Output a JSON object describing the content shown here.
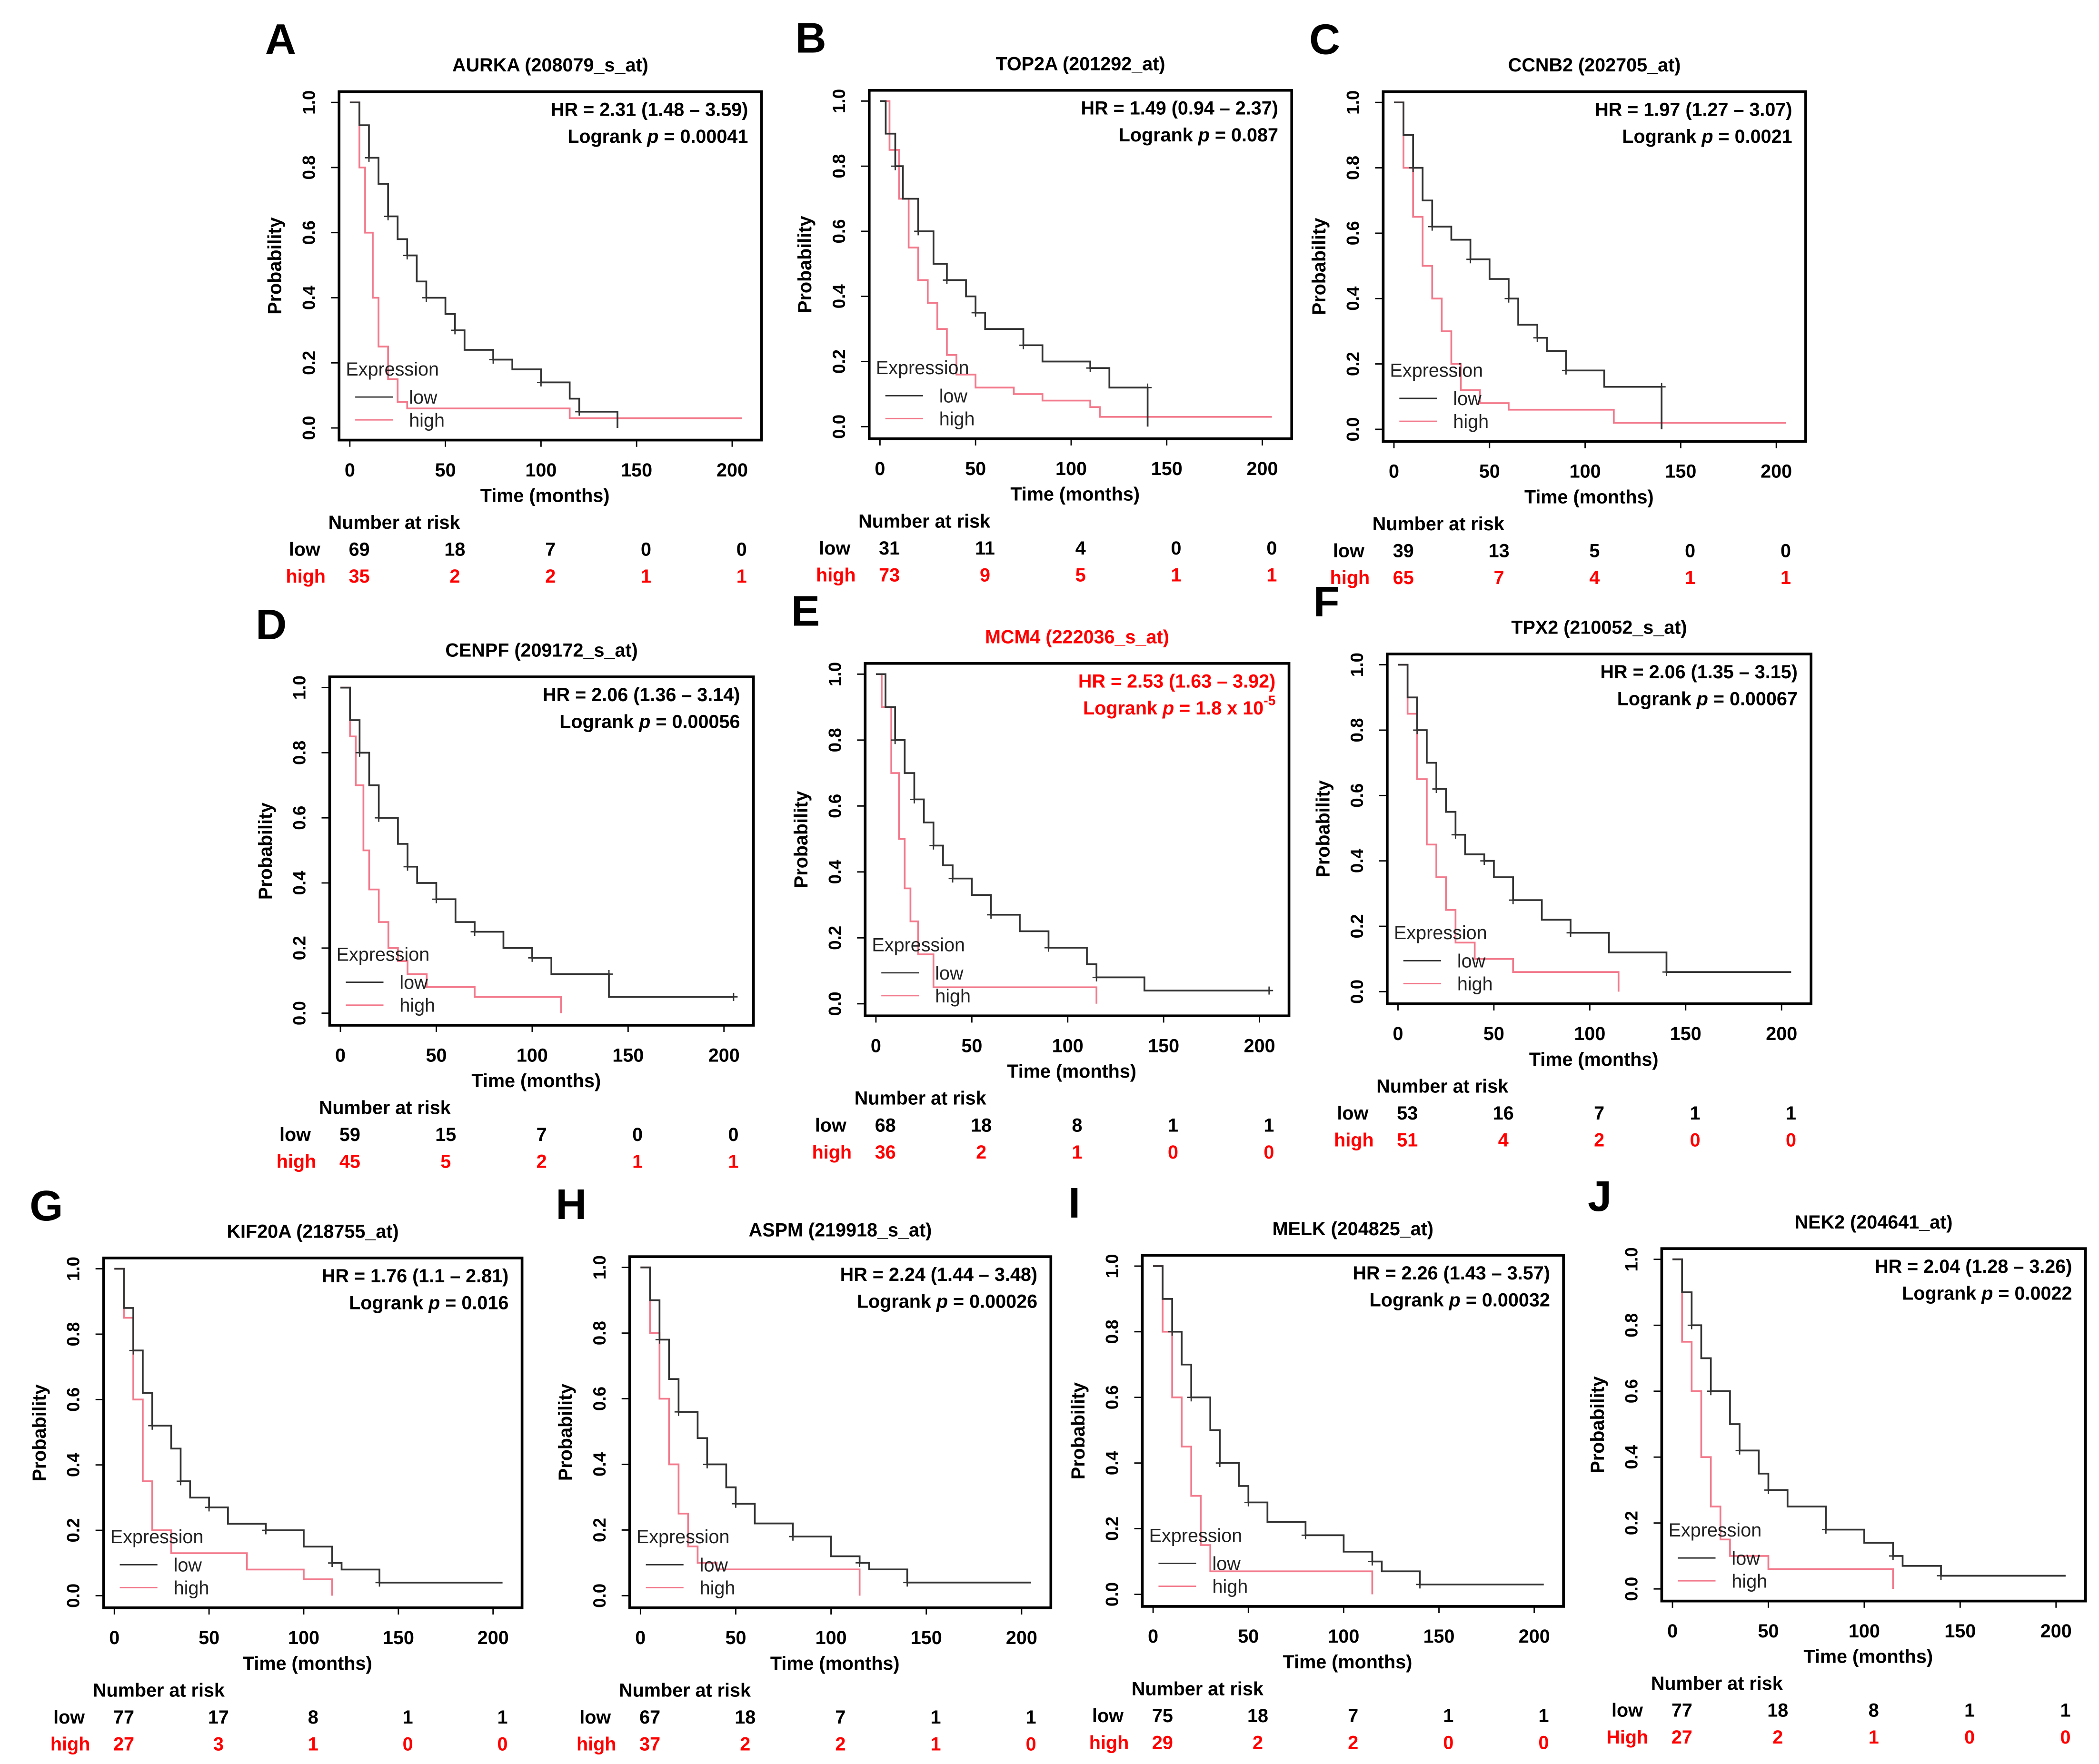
{
  "chart_data": [
    {
      "type": "line",
      "panel": "A",
      "title": "AURKA (208079_s_at)",
      "hr": "HR = 2.31 (1.48 – 3.59)",
      "p_value": "0.00041",
      "p_exp": null,
      "highlight": false,
      "low": [
        [
          0,
          1
        ],
        [
          5,
          0.93
        ],
        [
          10,
          0.83
        ],
        [
          15,
          0.75
        ],
        [
          20,
          0.65
        ],
        [
          25,
          0.58
        ],
        [
          30,
          0.53
        ],
        [
          35,
          0.45
        ],
        [
          40,
          0.4
        ],
        [
          50,
          0.35
        ],
        [
          55,
          0.3
        ],
        [
          60,
          0.24
        ],
        [
          75,
          0.21
        ],
        [
          85,
          0.18
        ],
        [
          100,
          0.14
        ],
        [
          115,
          0.09
        ],
        [
          120,
          0.05
        ],
        [
          140,
          0.05
        ],
        [
          140,
          0
        ]
      ],
      "high": [
        [
          0,
          1
        ],
        [
          5,
          0.8
        ],
        [
          8,
          0.6
        ],
        [
          12,
          0.4
        ],
        [
          15,
          0.25
        ],
        [
          20,
          0.15
        ],
        [
          25,
          0.08
        ],
        [
          30,
          0.06
        ],
        [
          115,
          0.03
        ],
        [
          205,
          0.03
        ]
      ],
      "risk": {
        "low": [
          "69",
          "18",
          "7",
          "0",
          "0"
        ],
        "high": [
          "35",
          "2",
          "2",
          "1",
          "1"
        ]
      },
      "high_label": "high"
    },
    {
      "type": "line",
      "panel": "B",
      "title": "TOP2A (201292_at)",
      "hr": "HR = 1.49 (0.94 – 2.37)",
      "p_value": "0.087",
      "p_exp": null,
      "highlight": false,
      "low": [
        [
          0,
          1
        ],
        [
          3,
          0.9
        ],
        [
          8,
          0.8
        ],
        [
          12,
          0.7
        ],
        [
          20,
          0.6
        ],
        [
          28,
          0.5
        ],
        [
          35,
          0.45
        ],
        [
          45,
          0.4
        ],
        [
          50,
          0.35
        ],
        [
          55,
          0.3
        ],
        [
          75,
          0.25
        ],
        [
          85,
          0.2
        ],
        [
          110,
          0.18
        ],
        [
          120,
          0.12
        ],
        [
          140,
          0.12
        ],
        [
          140,
          0
        ]
      ],
      "high": [
        [
          0,
          1
        ],
        [
          5,
          0.85
        ],
        [
          10,
          0.7
        ],
        [
          15,
          0.55
        ],
        [
          20,
          0.45
        ],
        [
          25,
          0.38
        ],
        [
          30,
          0.3
        ],
        [
          35,
          0.22
        ],
        [
          40,
          0.16
        ],
        [
          50,
          0.12
        ],
        [
          70,
          0.1
        ],
        [
          85,
          0.08
        ],
        [
          110,
          0.06
        ],
        [
          115,
          0.03
        ],
        [
          205,
          0.03
        ]
      ],
      "risk": {
        "low": [
          "31",
          "11",
          "4",
          "0",
          "0"
        ],
        "high": [
          "73",
          "9",
          "5",
          "1",
          "1"
        ]
      },
      "high_label": "high"
    },
    {
      "type": "line",
      "panel": "C",
      "title": "CCNB2 (202705_at)",
      "hr": "HR = 1.97 (1.27 – 3.07)",
      "p_value": "0.0021",
      "p_exp": null,
      "highlight": false,
      "low": [
        [
          0,
          1
        ],
        [
          5,
          0.9
        ],
        [
          10,
          0.8
        ],
        [
          15,
          0.7
        ],
        [
          20,
          0.62
        ],
        [
          30,
          0.58
        ],
        [
          40,
          0.52
        ],
        [
          50,
          0.46
        ],
        [
          60,
          0.4
        ],
        [
          65,
          0.32
        ],
        [
          75,
          0.28
        ],
        [
          80,
          0.24
        ],
        [
          90,
          0.18
        ],
        [
          110,
          0.13
        ],
        [
          140,
          0.13
        ],
        [
          140,
          0
        ]
      ],
      "high": [
        [
          0,
          1
        ],
        [
          5,
          0.8
        ],
        [
          10,
          0.65
        ],
        [
          15,
          0.5
        ],
        [
          20,
          0.4
        ],
        [
          25,
          0.3
        ],
        [
          30,
          0.2
        ],
        [
          35,
          0.12
        ],
        [
          45,
          0.08
        ],
        [
          60,
          0.06
        ],
        [
          100,
          0.06
        ],
        [
          115,
          0.02
        ],
        [
          205,
          0.02
        ]
      ],
      "risk": {
        "low": [
          "39",
          "13",
          "5",
          "0",
          "0"
        ],
        "high": [
          "65",
          "7",
          "4",
          "1",
          "1"
        ]
      },
      "high_label": "high"
    },
    {
      "type": "line",
      "panel": "D",
      "title": "CENPF (209172_s_at)",
      "hr": "HR = 2.06 (1.36 – 3.14)",
      "p_value": "0.00056",
      "p_exp": null,
      "highlight": false,
      "low": [
        [
          0,
          1
        ],
        [
          5,
          0.9
        ],
        [
          10,
          0.8
        ],
        [
          15,
          0.7
        ],
        [
          20,
          0.6
        ],
        [
          30,
          0.52
        ],
        [
          35,
          0.45
        ],
        [
          40,
          0.4
        ],
        [
          50,
          0.35
        ],
        [
          60,
          0.28
        ],
        [
          70,
          0.25
        ],
        [
          85,
          0.2
        ],
        [
          100,
          0.17
        ],
        [
          110,
          0.12
        ],
        [
          140,
          0.12
        ],
        [
          140,
          0.05
        ],
        [
          205,
          0.05
        ]
      ],
      "high": [
        [
          0,
          1
        ],
        [
          5,
          0.85
        ],
        [
          8,
          0.7
        ],
        [
          12,
          0.5
        ],
        [
          15,
          0.38
        ],
        [
          20,
          0.28
        ],
        [
          25,
          0.2
        ],
        [
          30,
          0.16
        ],
        [
          35,
          0.12
        ],
        [
          45,
          0.08
        ],
        [
          70,
          0.05
        ],
        [
          115,
          0.05
        ],
        [
          115,
          0
        ]
      ],
      "risk": {
        "low": [
          "59",
          "15",
          "7",
          "0",
          "0"
        ],
        "high": [
          "45",
          "5",
          "2",
          "1",
          "1"
        ]
      },
      "high_label": "high"
    },
    {
      "type": "line",
      "panel": "E",
      "title": "MCM4 (222036_s_at)",
      "hr": "HR = 2.53 (1.63 – 3.92)",
      "p_value": "1.8 x 10",
      "p_exp": "-5",
      "highlight": true,
      "low": [
        [
          0,
          1
        ],
        [
          5,
          0.9
        ],
        [
          10,
          0.8
        ],
        [
          15,
          0.7
        ],
        [
          20,
          0.62
        ],
        [
          25,
          0.55
        ],
        [
          30,
          0.48
        ],
        [
          35,
          0.42
        ],
        [
          40,
          0.38
        ],
        [
          50,
          0.33
        ],
        [
          60,
          0.27
        ],
        [
          75,
          0.22
        ],
        [
          90,
          0.17
        ],
        [
          110,
          0.12
        ],
        [
          115,
          0.08
        ],
        [
          140,
          0.04
        ],
        [
          205,
          0.04
        ]
      ],
      "high": [
        [
          0,
          1
        ],
        [
          3,
          0.9
        ],
        [
          8,
          0.7
        ],
        [
          12,
          0.5
        ],
        [
          15,
          0.35
        ],
        [
          18,
          0.25
        ],
        [
          22,
          0.15
        ],
        [
          30,
          0.05
        ],
        [
          115,
          0.03
        ],
        [
          115,
          0
        ]
      ],
      "risk": {
        "low": [
          "68",
          "18",
          "8",
          "1",
          "1"
        ],
        "high": [
          "36",
          "2",
          "1",
          "0",
          "0"
        ]
      },
      "high_label": "high"
    },
    {
      "type": "line",
      "panel": "F",
      "title": "TPX2 (210052_s_at)",
      "hr": "HR = 2.06 (1.35 – 3.15)",
      "p_value": "0.00067",
      "p_exp": null,
      "highlight": false,
      "low": [
        [
          0,
          1
        ],
        [
          5,
          0.9
        ],
        [
          10,
          0.8
        ],
        [
          15,
          0.7
        ],
        [
          20,
          0.62
        ],
        [
          25,
          0.55
        ],
        [
          30,
          0.48
        ],
        [
          35,
          0.42
        ],
        [
          45,
          0.4
        ],
        [
          50,
          0.35
        ],
        [
          60,
          0.28
        ],
        [
          75,
          0.22
        ],
        [
          90,
          0.18
        ],
        [
          110,
          0.12
        ],
        [
          140,
          0.06
        ],
        [
          205,
          0.06
        ]
      ],
      "high": [
        [
          0,
          1
        ],
        [
          5,
          0.85
        ],
        [
          10,
          0.65
        ],
        [
          15,
          0.45
        ],
        [
          20,
          0.35
        ],
        [
          25,
          0.25
        ],
        [
          30,
          0.15
        ],
        [
          40,
          0.1
        ],
        [
          60,
          0.06
        ],
        [
          115,
          0.06
        ],
        [
          115,
          0
        ]
      ],
      "risk": {
        "low": [
          "53",
          "16",
          "7",
          "1",
          "1"
        ],
        "high": [
          "51",
          "4",
          "2",
          "0",
          "0"
        ]
      },
      "high_label": "high"
    },
    {
      "type": "line",
      "panel": "G",
      "title": "KIF20A (218755_at)",
      "hr": "HR = 1.76 (1.1 – 2.81)",
      "p_value": "0.016",
      "p_exp": null,
      "highlight": false,
      "low": [
        [
          0,
          1
        ],
        [
          5,
          0.88
        ],
        [
          10,
          0.75
        ],
        [
          15,
          0.62
        ],
        [
          20,
          0.52
        ],
        [
          30,
          0.45
        ],
        [
          35,
          0.35
        ],
        [
          40,
          0.3
        ],
        [
          50,
          0.27
        ],
        [
          60,
          0.22
        ],
        [
          80,
          0.2
        ],
        [
          100,
          0.15
        ],
        [
          115,
          0.1
        ],
        [
          120,
          0.08
        ],
        [
          140,
          0.04
        ],
        [
          205,
          0.04
        ]
      ],
      "high": [
        [
          0,
          1
        ],
        [
          5,
          0.85
        ],
        [
          10,
          0.6
        ],
        [
          15,
          0.35
        ],
        [
          20,
          0.2
        ],
        [
          30,
          0.13
        ],
        [
          70,
          0.08
        ],
        [
          100,
          0.05
        ],
        [
          115,
          0.05
        ],
        [
          115,
          0
        ]
      ],
      "risk": {
        "low": [
          "77",
          "17",
          "8",
          "1",
          "1"
        ],
        "high": [
          "27",
          "3",
          "1",
          "0",
          "0"
        ]
      },
      "high_label": "high"
    },
    {
      "type": "line",
      "panel": "H",
      "title": "ASPM (219918_s_at)",
      "hr": "HR = 2.24 (1.44 – 3.48)",
      "p_value": "0.00026",
      "p_exp": null,
      "highlight": false,
      "low": [
        [
          0,
          1
        ],
        [
          5,
          0.9
        ],
        [
          10,
          0.78
        ],
        [
          15,
          0.66
        ],
        [
          20,
          0.56
        ],
        [
          30,
          0.48
        ],
        [
          35,
          0.4
        ],
        [
          45,
          0.33
        ],
        [
          50,
          0.28
        ],
        [
          60,
          0.22
        ],
        [
          80,
          0.18
        ],
        [
          100,
          0.12
        ],
        [
          115,
          0.1
        ],
        [
          120,
          0.08
        ],
        [
          140,
          0.04
        ],
        [
          205,
          0.04
        ]
      ],
      "high": [
        [
          0,
          1
        ],
        [
          5,
          0.8
        ],
        [
          10,
          0.6
        ],
        [
          15,
          0.4
        ],
        [
          20,
          0.25
        ],
        [
          25,
          0.15
        ],
        [
          30,
          0.1
        ],
        [
          40,
          0.08
        ],
        [
          115,
          0.08
        ],
        [
          115,
          0
        ]
      ],
      "risk": {
        "low": [
          "67",
          "18",
          "7",
          "1",
          "1"
        ],
        "high": [
          "37",
          "2",
          "2",
          "1",
          "0"
        ]
      },
      "high_label": "high"
    },
    {
      "type": "line",
      "panel": "I",
      "title": "MELK (204825_at)",
      "hr": "HR = 2.26 (1.43 – 3.57)",
      "p_value": "0.00032",
      "p_exp": null,
      "highlight": false,
      "low": [
        [
          0,
          1
        ],
        [
          5,
          0.9
        ],
        [
          10,
          0.8
        ],
        [
          15,
          0.7
        ],
        [
          20,
          0.6
        ],
        [
          30,
          0.5
        ],
        [
          35,
          0.4
        ],
        [
          45,
          0.33
        ],
        [
          50,
          0.28
        ],
        [
          60,
          0.22
        ],
        [
          80,
          0.18
        ],
        [
          100,
          0.13
        ],
        [
          115,
          0.1
        ],
        [
          120,
          0.07
        ],
        [
          140,
          0.03
        ],
        [
          205,
          0.03
        ]
      ],
      "high": [
        [
          0,
          1
        ],
        [
          5,
          0.8
        ],
        [
          10,
          0.6
        ],
        [
          15,
          0.45
        ],
        [
          20,
          0.3
        ],
        [
          25,
          0.15
        ],
        [
          30,
          0.07
        ],
        [
          110,
          0.07
        ],
        [
          115,
          0
        ]
      ],
      "risk": {
        "low": [
          "75",
          "18",
          "7",
          "1",
          "1"
        ],
        "high": [
          "29",
          "2",
          "2",
          "0",
          "0"
        ]
      },
      "high_label": "high"
    },
    {
      "type": "line",
      "panel": "J",
      "title": "NEK2 (204641_at)",
      "hr": "HR = 2.04 (1.28 – 3.26)",
      "p_value": "0.0022",
      "p_exp": null,
      "highlight": false,
      "low": [
        [
          0,
          1
        ],
        [
          5,
          0.9
        ],
        [
          10,
          0.8
        ],
        [
          15,
          0.7
        ],
        [
          20,
          0.6
        ],
        [
          30,
          0.5
        ],
        [
          35,
          0.42
        ],
        [
          45,
          0.35
        ],
        [
          50,
          0.3
        ],
        [
          60,
          0.25
        ],
        [
          80,
          0.18
        ],
        [
          100,
          0.14
        ],
        [
          115,
          0.1
        ],
        [
          120,
          0.07
        ],
        [
          140,
          0.04
        ],
        [
          205,
          0.04
        ]
      ],
      "high": [
        [
          0,
          1
        ],
        [
          5,
          0.75
        ],
        [
          10,
          0.6
        ],
        [
          15,
          0.4
        ],
        [
          20,
          0.25
        ],
        [
          25,
          0.15
        ],
        [
          30,
          0.1
        ],
        [
          50,
          0.06
        ],
        [
          100,
          0.06
        ],
        [
          115,
          0
        ]
      ],
      "risk": {
        "low": [
          "77",
          "18",
          "8",
          "1",
          "1"
        ],
        "high": [
          "27",
          "2",
          "1",
          "0",
          "0"
        ]
      },
      "high_label": "High"
    }
  ],
  "common": {
    "xlabel": "Time (months)",
    "ylabel": "Probability",
    "x_ticks": [
      "0",
      "50",
      "100",
      "150",
      "200"
    ],
    "x_tick_values": [
      0,
      50,
      100,
      150,
      200
    ],
    "y_ticks": [
      "0.0",
      "0.2",
      "0.4",
      "0.6",
      "0.8",
      "1.0"
    ],
    "y_tick_values": [
      0,
      0.2,
      0.4,
      0.6,
      0.8,
      1.0
    ],
    "xlim": [
      0,
      200
    ],
    "ylim": [
      0,
      1
    ],
    "legend_title": "Expression",
    "legend_low": "low",
    "legend_high": "high",
    "risk_title": "Number at risk",
    "risk_low_label": "low",
    "logrank_prefix": "Logrank ",
    "p_symbol": "p",
    " eq": " = ",
    "colors": {
      "low": "#333333",
      "high": "#f27a8c",
      "red": "#ff0000",
      "text": "#000000"
    }
  }
}
